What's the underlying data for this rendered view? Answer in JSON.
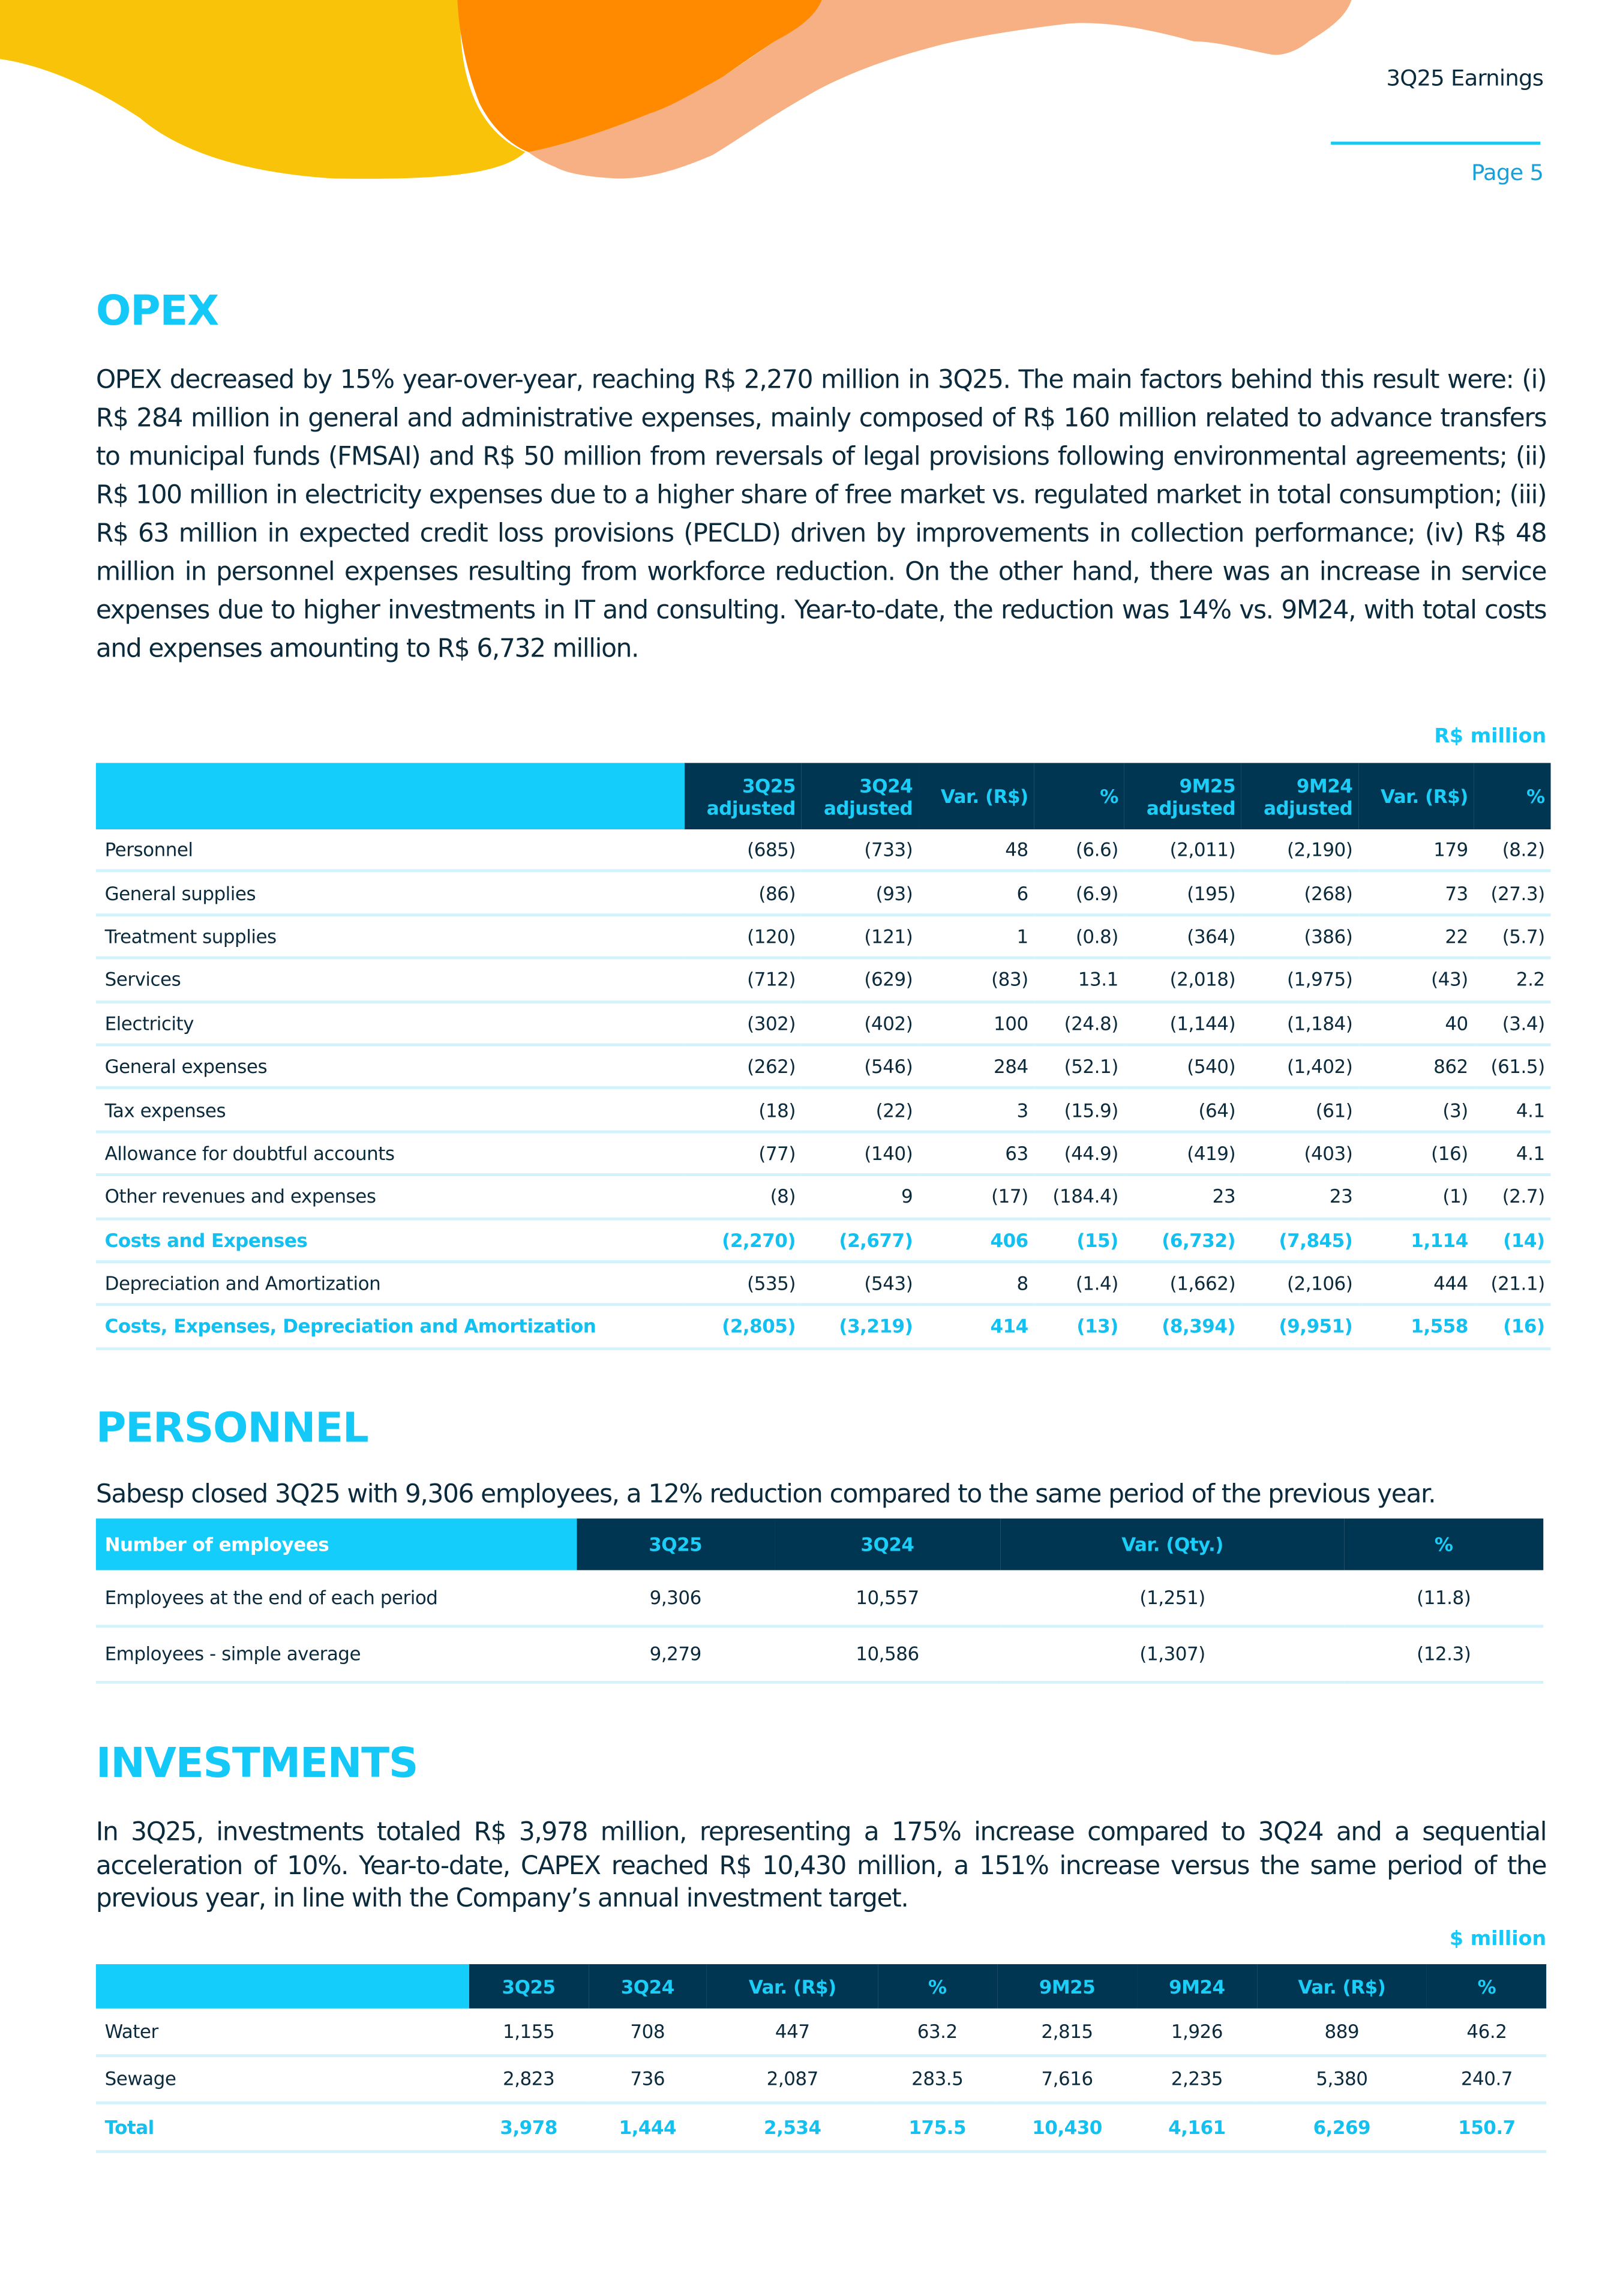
{
  "header": {
    "title": "3Q25 Earnings",
    "page": "Page 5"
  },
  "colors": {
    "accent": "#14cdfb",
    "dark": "#003652",
    "yellow": "#f9c30a",
    "orange": "#ff8a00",
    "peach": "#f7b084"
  },
  "opex": {
    "title": "OPEX",
    "paragraph": "OPEX decreased by 15% year-over-year, reaching R$ 2,270 million in 3Q25. The main factors behind this result were: (i) R$ 284 million in general and administrative expenses, mainly composed of R$ 160 million related to advance transfers to municipal funds (FMSAI) and R$ 50 million from reversals of legal provisions following environmental agreements; (ii) R$ 100 million in electricity expenses due to a higher share of free market vs. regulated market in total consumption; (iii) R$ 63 million in expected credit loss provisions (PECLD) driven by improvements in collection performance; (iv) R$ 48 million in personnel expenses resulting from workforce reduction. On the other hand, there was an increase in service expenses due to higher investments in IT and consulting. Year-to-date, the reduction was 14% vs. 9M24, with total costs and expenses amounting to R$ 6,732 million.",
    "unit": "R$ million",
    "columns": [
      [
        "",
        ""
      ],
      [
        "3Q25",
        "adjusted"
      ],
      [
        "3Q24",
        "adjusted"
      ],
      [
        "Var. (R$)",
        ""
      ],
      [
        "%",
        ""
      ],
      [
        "9M25",
        "adjusted"
      ],
      [
        "9M24",
        "adjusted"
      ],
      [
        "Var. (R$)",
        ""
      ],
      [
        "%",
        ""
      ]
    ],
    "rows": [
      {
        "cells": [
          "Personnel",
          "(685)",
          "(733)",
          "48",
          "(6.6)",
          "(2,011)",
          "(2,190)",
          "179",
          "(8.2)"
        ]
      },
      {
        "cells": [
          "General supplies",
          "(86)",
          "(93)",
          "6",
          "(6.9)",
          "(195)",
          "(268)",
          "73",
          "(27.3)"
        ]
      },
      {
        "cells": [
          "Treatment supplies",
          "(120)",
          "(121)",
          "1",
          "(0.8)",
          "(364)",
          "(386)",
          "22",
          "(5.7)"
        ]
      },
      {
        "cells": [
          "Services",
          "(712)",
          "(629)",
          "(83)",
          "13.1",
          "(2,018)",
          "(1,975)",
          "(43)",
          "2.2"
        ]
      },
      {
        "cells": [
          "Electricity",
          "(302)",
          "(402)",
          "100",
          "(24.8)",
          "(1,144)",
          "(1,184)",
          "40",
          "(3.4)"
        ]
      },
      {
        "cells": [
          "General expenses",
          "(262)",
          "(546)",
          "284",
          "(52.1)",
          "(540)",
          "(1,402)",
          "862",
          "(61.5)"
        ]
      },
      {
        "cells": [
          "Tax expenses",
          "(18)",
          "(22)",
          "3",
          "(15.9)",
          "(64)",
          "(61)",
          "(3)",
          "4.1"
        ]
      },
      {
        "cells": [
          "Allowance for doubtful accounts",
          "(77)",
          "(140)",
          "63",
          "(44.9)",
          "(419)",
          "(403)",
          "(16)",
          "4.1"
        ]
      },
      {
        "cells": [
          "Other revenues and expenses",
          "(8)",
          "9",
          "(17)",
          "(184.4)",
          "23",
          "23",
          "(1)",
          "(2.7)"
        ]
      },
      {
        "highlight": true,
        "cells": [
          "Costs and Expenses",
          "(2,270)",
          "(2,677)",
          "406",
          "(15)",
          "(6,732)",
          "(7,845)",
          "1,114",
          "(14)"
        ]
      },
      {
        "cells": [
          "Depreciation and Amortization",
          "(535)",
          "(543)",
          "8",
          "(1.4)",
          "(1,662)",
          "(2,106)",
          "444",
          "(21.1)"
        ]
      },
      {
        "highlight": true,
        "cells": [
          "Costs, Expenses, Depreciation and Amortization",
          "(2,805)",
          "(3,219)",
          "414",
          "(13)",
          "(8,394)",
          "(9,951)",
          "1,558",
          "(16)"
        ]
      }
    ]
  },
  "personnel": {
    "title": "PERSONNEL",
    "paragraph": "Sabesp closed 3Q25 with 9,306 employees, a 12% reduction compared to the same period of the previous year.",
    "columns": [
      "Number  of employees",
      "3Q25",
      "3Q24",
      "Var. (Qty.)",
      "%"
    ],
    "rows": [
      {
        "cells": [
          "Employees at the end of each period",
          "9,306",
          "10,557",
          "(1,251)",
          "(11.8)"
        ]
      },
      {
        "cells": [
          "Employees - simple average",
          "9,279",
          "10,586",
          "(1,307)",
          "(12.3)"
        ]
      }
    ]
  },
  "investments": {
    "title": "INVESTMENTS",
    "paragraph": "In 3Q25, investments totaled R$ 3,978 million, representing a 175% increase compared to 3Q24 and a sequential acceleration of 10%. Year-to-date, CAPEX reached R$ 10,430 million, a 151% increase versus the same period of the previous year, in line with the Company’s annual investment target.",
    "unit": "$ million",
    "columns": [
      "",
      "3Q25",
      "3Q24",
      "Var. (R$)",
      "%",
      "9M25",
      "9M24",
      "Var. (R$)",
      "%"
    ],
    "rows": [
      {
        "cells": [
          "Water",
          "1,155",
          "708",
          "447",
          "63.2",
          "2,815",
          "1,926",
          "889",
          "46.2"
        ]
      },
      {
        "cells": [
          "Sewage",
          "2,823",
          "736",
          "2,087",
          "283.5",
          "7,616",
          "2,235",
          "5,380",
          "240.7"
        ]
      },
      {
        "highlight": true,
        "cells": [
          "Total",
          "3,978",
          "1,444",
          "2,534",
          "175.5",
          "10,430",
          "4,161",
          "6,269",
          "150.7"
        ]
      }
    ]
  }
}
